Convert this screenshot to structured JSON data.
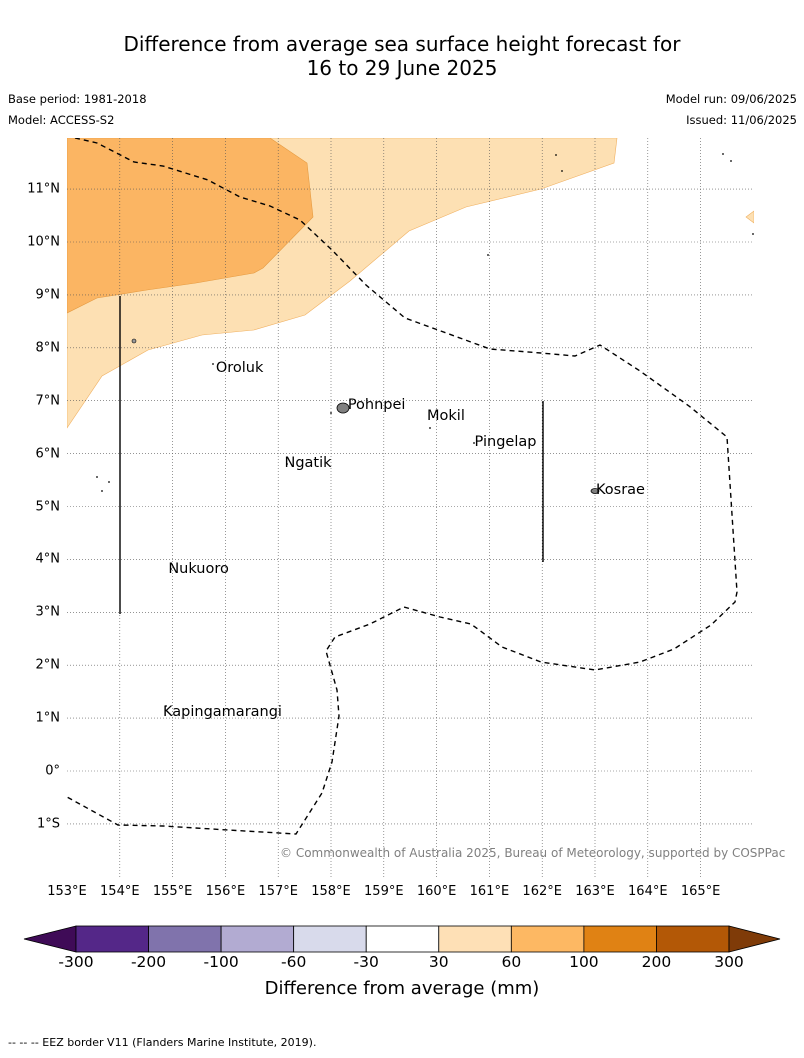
{
  "title": {
    "line1": "Difference from average sea surface height forecast for",
    "line2": "16 to 29 June 2025"
  },
  "meta": {
    "base_period": "Base period: 1981-2018",
    "model": "Model: ACCESS-S2",
    "model_run": "Model run: 09/06/2025",
    "issued": "Issued: 11/06/2025"
  },
  "map": {
    "lon_labels": [
      "153°E",
      "154°E",
      "155°E",
      "156°E",
      "157°E",
      "158°E",
      "159°E",
      "160°E",
      "161°E",
      "162°E",
      "163°E",
      "164°E",
      "165°E"
    ],
    "lat_labels": [
      "11°N",
      "10°N",
      "9°N",
      "8°N",
      "7°N",
      "6°N",
      "5°N",
      "4°N",
      "3°N",
      "2°N",
      "1°N",
      "0°",
      "1°S"
    ],
    "places": [
      {
        "name": "Oroluk",
        "lon": 155.8,
        "lat": 7.6
      },
      {
        "name": "Pohnpei",
        "lon": 158.3,
        "lat": 6.9
      },
      {
        "name": "Mokil",
        "lon": 159.8,
        "lat": 6.7
      },
      {
        "name": "Pingelap",
        "lon": 160.7,
        "lat": 6.2
      },
      {
        "name": "Ngatik",
        "lon": 157.1,
        "lat": 5.8
      },
      {
        "name": "Kosrae",
        "lon": 163.0,
        "lat": 5.3
      },
      {
        "name": "Nukuoro",
        "lon": 154.9,
        "lat": 3.8
      },
      {
        "name": "Kapingamarangi",
        "lon": 154.8,
        "lat": 1.1
      }
    ],
    "copyright": "© Commonwealth of Australia 2025, Bureau of Meteorology, supported by COSPPac",
    "fill_colors": {
      "light_orange": "#fde0b3",
      "orange": "#fbb563"
    }
  },
  "colorbar": {
    "label": "Difference from average (mm)",
    "ticks": [
      "-300",
      "-200",
      "-100",
      "-60",
      "-30",
      "30",
      "60",
      "100",
      "200",
      "300"
    ],
    "colors": [
      "#3f0b57",
      "#542788",
      "#8073ac",
      "#b2abd2",
      "#d8daeb",
      "#ffffff",
      "#fee0b6",
      "#fdb863",
      "#e08214",
      "#b35806",
      "#7f3b08"
    ]
  },
  "footer": "--  --  -- EEZ border V11 (Flanders Marine Institute, 2019)."
}
